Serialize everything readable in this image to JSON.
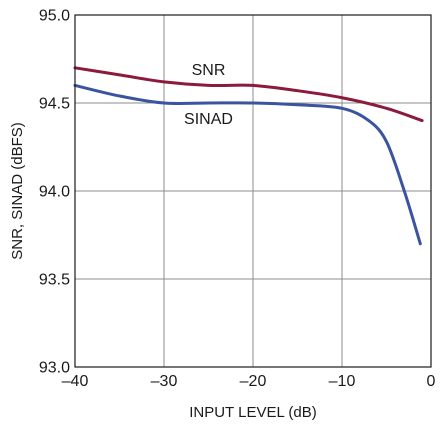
{
  "chart_data": {
    "type": "line",
    "title": "",
    "xlabel": "INPUT LEVEL (dB)",
    "ylabel": "SNR, SINAD (dBFS)",
    "xlim": [
      -40,
      0
    ],
    "ylim": [
      93.0,
      95.0
    ],
    "x_ticks": [
      -40,
      -30,
      -20,
      -10,
      0
    ],
    "x_tick_labels": [
      "–40",
      "–30",
      "–20",
      "–10",
      "0"
    ],
    "y_ticks": [
      93.0,
      93.5,
      94.0,
      94.5,
      95.0
    ],
    "y_tick_labels": [
      "93.0",
      "93.5",
      "94.0",
      "94.5",
      "95.0"
    ],
    "grid": true,
    "series": [
      {
        "name": "SNR",
        "color": "#8b1a3c",
        "points": [
          [
            -40,
            94.7
          ],
          [
            -35,
            94.66
          ],
          [
            -30,
            94.62
          ],
          [
            -25,
            94.6
          ],
          [
            -20,
            94.6
          ],
          [
            -15,
            94.57
          ],
          [
            -10,
            94.53
          ],
          [
            -5,
            94.47
          ],
          [
            -1,
            94.4
          ]
        ],
        "label_at": [
          -25,
          94.66
        ]
      },
      {
        "name": "SINAD",
        "color": "#3b54a0",
        "points": [
          [
            -40,
            94.6
          ],
          [
            -35,
            94.54
          ],
          [
            -30,
            94.5
          ],
          [
            -25,
            94.5
          ],
          [
            -20,
            94.5
          ],
          [
            -15,
            94.49
          ],
          [
            -10,
            94.47
          ],
          [
            -7,
            94.4
          ],
          [
            -5,
            94.28
          ],
          [
            -3,
            94.0
          ],
          [
            -1.2,
            93.7
          ]
        ],
        "label_at": [
          -25,
          94.38
        ]
      }
    ]
  }
}
